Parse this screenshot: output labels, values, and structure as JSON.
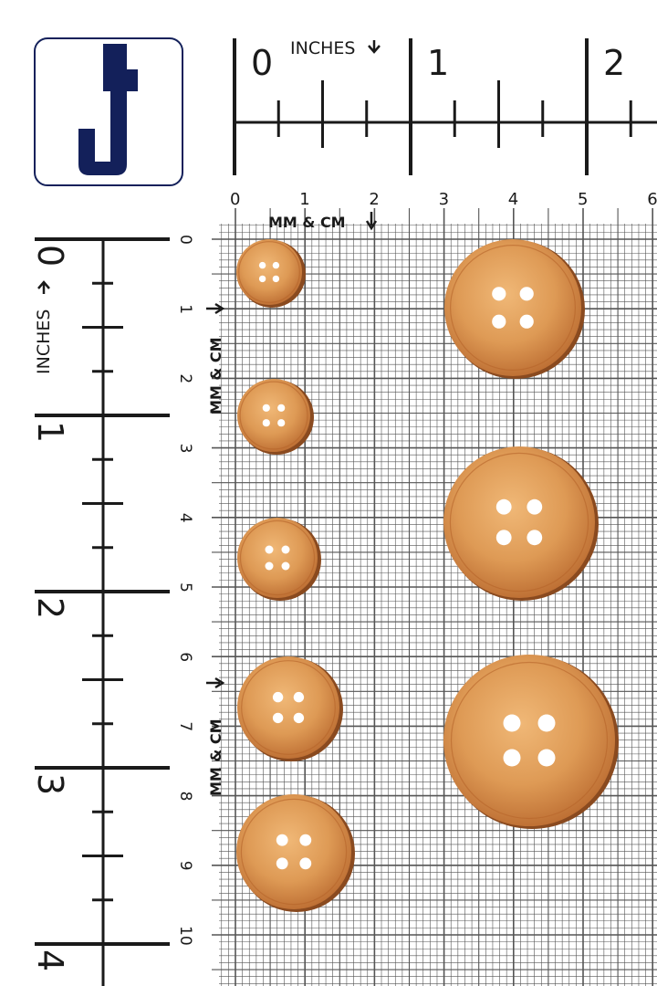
{
  "logo": {
    "letter": "J",
    "color": "#13205a"
  },
  "top_ruler": {
    "unit_label": "INCHES",
    "labels": [
      "0",
      "1",
      "2"
    ]
  },
  "left_ruler": {
    "unit_label": "INCHES",
    "labels": [
      "0",
      "1",
      "2",
      "3",
      "4"
    ]
  },
  "cm_scale_top": {
    "unit_label": "MM & CM",
    "labels": [
      "0",
      "1",
      "2",
      "3",
      "4",
      "5",
      "6"
    ]
  },
  "cm_scale_left": {
    "unit_label": "MM & CM",
    "labels": [
      "0",
      "1",
      "2",
      "3",
      "4",
      "5",
      "6",
      "7",
      "8",
      "9",
      "10"
    ]
  },
  "colors": {
    "ink": "#1a1a1a",
    "grid": "#555555",
    "button_light": "#e9a863",
    "button_dark": "#b5642a",
    "button_rim": "#8a4a1f"
  },
  "buttons": {
    "count": 8,
    "holes_per_button": 4
  }
}
